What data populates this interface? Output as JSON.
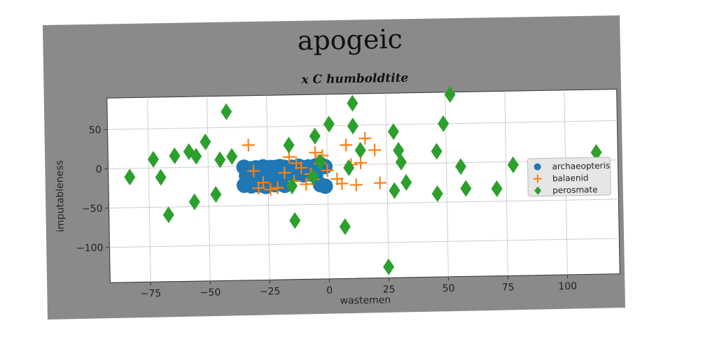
{
  "chart_data": {
    "type": "scatter",
    "title": "apogeic",
    "subtitle": "x C humboldtite",
    "xlabel": "wastemen",
    "ylabel": "imputableness",
    "xlim": [
      -92,
      122
    ],
    "ylim": [
      -145,
      90
    ],
    "xticks": [
      -75,
      -50,
      -25,
      0,
      25,
      50,
      75,
      100
    ],
    "xtick_labels": [
      "−75",
      "−50",
      "−25",
      "0",
      "25",
      "50",
      "75",
      "100"
    ],
    "yticks": [
      50,
      0,
      -50,
      -100
    ],
    "ytick_labels": [
      "50",
      "0",
      "−50",
      "−100"
    ],
    "grid": true,
    "legend_position": "right",
    "series": [
      {
        "name": "archaeopteris",
        "marker": "circle",
        "color": "#1f77b4",
        "points": [
          [
            -35,
            -1
          ],
          [
            -32,
            -3
          ],
          [
            -30,
            -2
          ],
          [
            -27,
            -1
          ],
          [
            -24,
            -2
          ],
          [
            -22,
            -2
          ],
          [
            -20,
            -1
          ],
          [
            -18,
            -2
          ],
          [
            -15,
            -2
          ],
          [
            -12,
            -1
          ],
          [
            -10,
            -3
          ],
          [
            -8,
            -2
          ],
          [
            -5,
            -1
          ],
          [
            -3,
            1
          ],
          [
            -1,
            -2
          ],
          [
            -34,
            -12
          ],
          [
            -31,
            -11
          ],
          [
            -28,
            -12
          ],
          [
            -25,
            -13
          ],
          [
            -22,
            -11
          ],
          [
            -19,
            -13
          ],
          [
            -16,
            -12
          ],
          [
            -13,
            -11
          ],
          [
            -10,
            -12
          ],
          [
            -7,
            -11
          ],
          [
            -5,
            -13
          ],
          [
            -35,
            -24
          ],
          [
            -32,
            -25
          ],
          [
            -29,
            -24
          ],
          [
            -26,
            -26
          ],
          [
            -22,
            -24
          ],
          [
            -18,
            -25
          ],
          [
            -3,
            -25
          ],
          [
            -1,
            -27
          ],
          [
            -26,
            -6
          ],
          [
            -20,
            -6
          ],
          [
            -14,
            -7
          ],
          [
            -9,
            -7
          ]
        ]
      },
      {
        "name": "balaenid",
        "marker": "plus",
        "color": "#ff7f0e",
        "points": [
          [
            -33,
            27
          ],
          [
            -31,
            -6
          ],
          [
            -29,
            -28
          ],
          [
            -27,
            -21
          ],
          [
            -24,
            -30
          ],
          [
            -21,
            -28
          ],
          [
            -18,
            -9
          ],
          [
            -16,
            11
          ],
          [
            -13,
            3
          ],
          [
            -11,
            -3
          ],
          [
            -9,
            -24
          ],
          [
            -7,
            -11
          ],
          [
            -5,
            16
          ],
          [
            -3,
            2
          ],
          [
            -2,
            12
          ],
          [
            4,
            -18
          ],
          [
            6,
            -24
          ],
          [
            8,
            25
          ],
          [
            10,
            0
          ],
          [
            12,
            -26
          ],
          [
            14,
            2
          ],
          [
            16,
            33
          ],
          [
            20,
            18
          ],
          [
            22,
            -24
          ],
          [
            -14,
            -20
          ],
          [
            -6,
            -18
          ],
          [
            0,
            -7
          ]
        ]
      },
      {
        "name": "perosmate",
        "marker": "diamond",
        "color": "#2ca02c",
        "points": [
          [
            -83,
            -11
          ],
          [
            -73,
            11
          ],
          [
            -70,
            -12
          ],
          [
            -67,
            -60
          ],
          [
            -64,
            15
          ],
          [
            -58,
            20
          ],
          [
            -56,
            -44
          ],
          [
            -55,
            14
          ],
          [
            -51,
            32
          ],
          [
            -47,
            -35
          ],
          [
            -45,
            9
          ],
          [
            -42,
            70
          ],
          [
            -40,
            13
          ],
          [
            -16,
            26
          ],
          [
            -15,
            -26
          ],
          [
            -14,
            -70
          ],
          [
            -6,
            -15
          ],
          [
            -5,
            37
          ],
          [
            -3,
            4
          ],
          [
            1,
            52
          ],
          [
            7,
            -79
          ],
          [
            9,
            -4
          ],
          [
            11,
            49
          ],
          [
            11,
            78
          ],
          [
            14,
            18
          ],
          [
            25,
            -131
          ],
          [
            28,
            41
          ],
          [
            28,
            -34
          ],
          [
            30,
            17
          ],
          [
            31,
            2
          ],
          [
            33,
            -24
          ],
          [
            46,
            15
          ],
          [
            46,
            -39
          ],
          [
            49,
            50
          ],
          [
            52,
            87
          ],
          [
            56,
            -5
          ],
          [
            58,
            -33
          ],
          [
            71,
            -34
          ],
          [
            78,
            -4
          ],
          [
            113,
            10
          ]
        ]
      }
    ]
  }
}
